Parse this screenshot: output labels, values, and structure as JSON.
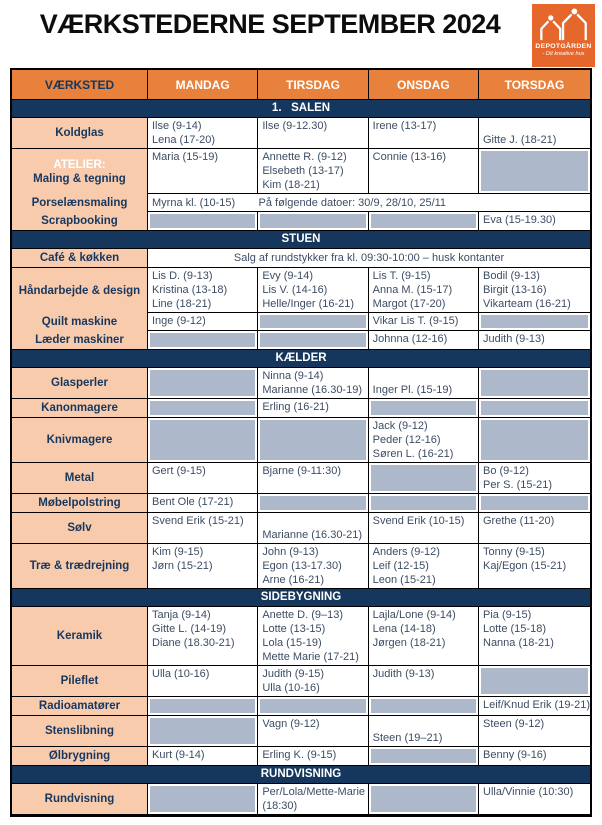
{
  "title": "VÆRKSTEDERNE SEPTEMBER 2024",
  "logo": {
    "name": "DEPOTGÅRDEN",
    "tagline": "- Dit kreative hus"
  },
  "colors": {
    "header_orange": "#e8813c",
    "logo_orange": "#e6672c",
    "label_peach": "#f8cbad",
    "section_navy": "#15375e",
    "empty_gray": "#adb9ca",
    "cell_text": "#3d4d63"
  },
  "table": {
    "headers": [
      "VÆRKSTED",
      "MANDAG",
      "TIRSDAG",
      "ONSDAG",
      "TORSDAG"
    ],
    "sections": [
      {
        "title": "1.   SALEN",
        "rows": [
          {
            "label": {
              "lines": [
                "Koldglas"
              ]
            },
            "cells": [
              {
                "lines": [
                  "Ilse (9-14)",
                  "Lena (17-20)"
                ]
              },
              {
                "lines": [
                  "Ilse (9-12.30)"
                ]
              },
              {
                "lines": [
                  "Irene (13-17)"
                ]
              },
              {
                "lines": [
                  "",
                  "Gitte J. (18-21)"
                ]
              }
            ]
          },
          {
            "label": {
              "lines": [
                "ATELIER:",
                "Maling & tegning"
              ],
              "accent": true,
              "mergeBelow": true
            },
            "cells": [
              {
                "lines": [
                  "Maria (15-19)"
                ]
              },
              {
                "lines": [
                  "Annette R. (9-12)",
                  "Elsebeth (13-17)",
                  "Kim (18-21)"
                ]
              },
              {
                "lines": [
                  "Connie (13-16)"
                ]
              },
              {
                "empty": true
              }
            ]
          },
          {
            "label": {
              "lines": [
                "Porselænsmaling"
              ],
              "mergeBelow": true
            },
            "cells": [
              {
                "span": 4,
                "parts": [
                  "Myrna kl. (10-15)",
                  "På følgende datoer: 30/9, 28/10, 25/11"
                ]
              }
            ]
          },
          {
            "label": {
              "lines": [
                "Scrapbooking"
              ]
            },
            "cells": [
              {
                "empty": true
              },
              {
                "empty": true
              },
              {
                "empty": true
              },
              {
                "lines": [
                  "Eva (15-19.30)"
                ]
              }
            ]
          }
        ]
      },
      {
        "title": "STUEN",
        "rows": [
          {
            "label": {
              "lines": [
                "Café & køkken"
              ]
            },
            "cells": [
              {
                "span": 4,
                "center": true,
                "lines": [
                  "Salg af rundstykker fra kl. 09:30-10:00 – husk kontanter"
                ]
              }
            ]
          },
          {
            "label": {
              "lines": [
                "Håndarbejde & design"
              ],
              "mergeBelow": true
            },
            "cells": [
              {
                "lines": [
                  "Lis D. (9-13)",
                  "Kristina (13-18)",
                  "Line (18-21)"
                ]
              },
              {
                "lines": [
                  "Evy (9-14)",
                  "Lis V. (14-16)",
                  "Helle/Inger (16-21)"
                ]
              },
              {
                "lines": [
                  "Lis T. (9-15)",
                  "Anna M. (15-17)",
                  "Margot (17-20)"
                ]
              },
              {
                "lines": [
                  "Bodil (9-13)",
                  "Birgit (13-16)",
                  "Vikarteam (16-21)"
                ]
              }
            ]
          },
          {
            "label": {
              "lines": [
                "Quilt maskine"
              ],
              "mergeBelow": true
            },
            "cells": [
              {
                "lines": [
                  "Inge (9-12)"
                ]
              },
              {
                "empty": true
              },
              {
                "lines": [
                  "Vikar Lis T. (9-15)"
                ]
              },
              {
                "empty": true
              }
            ]
          },
          {
            "label": {
              "lines": [
                "Læder maskiner"
              ]
            },
            "cells": [
              {
                "empty": true
              },
              {
                "empty": true
              },
              {
                "lines": [
                  "Johnna (12-16)"
                ]
              },
              {
                "lines": [
                  "Judith (9-13)"
                ]
              }
            ]
          }
        ]
      },
      {
        "title": "KÆLDER",
        "rows": [
          {
            "label": {
              "lines": [
                "Glasperler"
              ]
            },
            "cells": [
              {
                "empty": true
              },
              {
                "lines": [
                  "Ninna (9-14)",
                  "Marianne (16.30-19)"
                ]
              },
              {
                "lines": [
                  "",
                  "Inger Pl. (15-19)"
                ]
              },
              {
                "empty": true
              }
            ]
          },
          {
            "label": {
              "lines": [
                "Kanonmagere"
              ]
            },
            "cells": [
              {
                "empty": true
              },
              {
                "lines": [
                  "Erling (16-21)"
                ]
              },
              {
                "empty": true
              },
              {
                "empty": true
              }
            ]
          },
          {
            "label": {
              "lines": [
                "Knivmagere"
              ]
            },
            "cells": [
              {
                "empty": true
              },
              {
                "empty": true
              },
              {
                "lines": [
                  "Jack (9-12)",
                  "Peder (12-16)",
                  "Søren L. (16-21)"
                ]
              },
              {
                "empty": true
              }
            ]
          },
          {
            "label": {
              "lines": [
                "Metal"
              ]
            },
            "cells": [
              {
                "lines": [
                  "Gert (9-15)"
                ]
              },
              {
                "lines": [
                  "Bjarne (9-11:30)"
                ]
              },
              {
                "empty": true
              },
              {
                "lines": [
                  "Bo (9-12)",
                  "Per S. (15-21)"
                ]
              }
            ]
          },
          {
            "label": {
              "lines": [
                "Møbelpolstring"
              ]
            },
            "cells": [
              {
                "lines": [
                  "Bent Ole (17-21)"
                ]
              },
              {
                "empty": true
              },
              {
                "empty": true
              },
              {
                "empty": true
              }
            ]
          },
          {
            "label": {
              "lines": [
                "Sølv"
              ]
            },
            "cells": [
              {
                "lines": [
                  "Svend Erik (15-21)"
                ]
              },
              {
                "lines": [
                  "",
                  "Marianne (16.30-21)"
                ]
              },
              {
                "lines": [
                  "Svend Erik (10-15)"
                ]
              },
              {
                "lines": [
                  "Grethe (11-20)"
                ]
              }
            ]
          },
          {
            "label": {
              "lines": [
                "Træ & trædrejning"
              ]
            },
            "cells": [
              {
                "lines": [
                  "Kim (9-15)",
                  "Jørn (15-21)"
                ]
              },
              {
                "lines": [
                  "John (9-13)",
                  "Egon (13-17.30)",
                  "Arne (16-21)"
                ]
              },
              {
                "lines": [
                  "Anders (9-12)",
                  "Leif (12-15)",
                  "Leon (15-21)"
                ]
              },
              {
                "lines": [
                  "Tonny (9-15)",
                  "Kaj/Egon (15-21)"
                ]
              }
            ]
          }
        ]
      },
      {
        "title": "SIDEBYGNING",
        "rows": [
          {
            "label": {
              "lines": [
                "Keramik"
              ]
            },
            "cells": [
              {
                "lines": [
                  "Tanja (9-14)",
                  "Gitte L. (14-19)",
                  "Diane (18.30-21)"
                ]
              },
              {
                "lines": [
                  "Anette D. (9–13)",
                  "Lotte (13-15)",
                  "Lola (15-19)",
                  "Mette Marie (17-21)"
                ]
              },
              {
                "lines": [
                  "Lajla/Lone (9-14)",
                  "Lena (14-18)",
                  "Jørgen (18-21)"
                ]
              },
              {
                "lines": [
                  "Pia (9-15)",
                  "Lotte (15-18)",
                  "Nanna (18-21)"
                ]
              }
            ]
          },
          {
            "label": {
              "lines": [
                "Pileflet"
              ]
            },
            "cells": [
              {
                "lines": [
                  "Ulla (10-16)"
                ]
              },
              {
                "lines": [
                  "Judith (9-15)",
                  "Ulla (10-16)"
                ]
              },
              {
                "lines": [
                  "Judith (9-13)"
                ]
              },
              {
                "empty": true
              }
            ]
          },
          {
            "label": {
              "lines": [
                "Radioamatører"
              ]
            },
            "cells": [
              {
                "empty": true
              },
              {
                "empty": true
              },
              {
                "empty": true
              },
              {
                "lines": [
                  "Leif/Knud Erik (19-21)"
                ]
              }
            ]
          },
          {
            "label": {
              "lines": [
                "Stenslibning"
              ]
            },
            "cells": [
              {
                "empty": true
              },
              {
                "lines": [
                  "Vagn (9-12)"
                ]
              },
              {
                "lines": [
                  "",
                  "Steen (19–21)"
                ]
              },
              {
                "lines": [
                  "Steen (9-12)"
                ]
              }
            ]
          },
          {
            "label": {
              "lines": [
                "Ølbrygning"
              ]
            },
            "cells": [
              {
                "lines": [
                  "Kurt (9-14)"
                ]
              },
              {
                "lines": [
                  "Erling K. (9-15)"
                ]
              },
              {
                "empty": true
              },
              {
                "lines": [
                  "Benny (9-16)"
                ]
              }
            ]
          }
        ]
      },
      {
        "title": "RUNDVISNING",
        "rows": [
          {
            "label": {
              "lines": [
                "Rundvisning"
              ]
            },
            "cells": [
              {
                "empty": true
              },
              {
                "lines": [
                  "Per/Lola/Mette-Marie",
                  "(18:30)"
                ]
              },
              {
                "empty": true
              },
              {
                "lines": [
                  "Ulla/Vinnie (10:30)"
                ]
              }
            ]
          }
        ]
      }
    ]
  }
}
